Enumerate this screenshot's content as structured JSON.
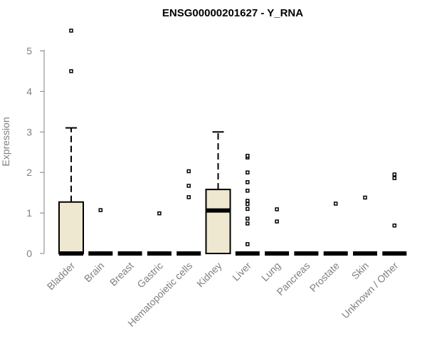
{
  "chart_data": {
    "type": "box",
    "title": "ENSG00000201627 - Y_RNA",
    "ylabel": "Expression",
    "xlabel": "",
    "ylim": [
      0,
      5.5
    ],
    "yticks": [
      0,
      1,
      2,
      3,
      4,
      5
    ],
    "grid": false,
    "colors": {
      "box_fill": "#EEE8D0",
      "stroke": "#000000",
      "axis": "#808080"
    },
    "categories": [
      "Bladder",
      "Brain",
      "Breast",
      "Gastric",
      "Hematopoietic cells",
      "Kidney",
      "Liver",
      "Lung",
      "Pancreas",
      "Prostate",
      "Skin",
      "Unknown / Other"
    ],
    "boxes": [
      {
        "category": "Bladder",
        "q1": 0,
        "median": 0,
        "q3": 1.27,
        "whisker_low": 0,
        "whisker_high": 3.1,
        "outliers": [
          4.5,
          5.5
        ]
      },
      {
        "category": "Brain",
        "q1": 0,
        "median": 0,
        "q3": 0,
        "whisker_low": 0,
        "whisker_high": 0,
        "outliers": [
          1.07
        ]
      },
      {
        "category": "Breast",
        "q1": 0,
        "median": 0,
        "q3": 0,
        "whisker_low": 0,
        "whisker_high": 0,
        "outliers": []
      },
      {
        "category": "Gastric",
        "q1": 0,
        "median": 0,
        "q3": 0,
        "whisker_low": 0,
        "whisker_high": 0,
        "outliers": [
          0.99
        ]
      },
      {
        "category": "Hematopoietic cells",
        "q1": 0,
        "median": 0,
        "q3": 0,
        "whisker_low": 0,
        "whisker_high": 0,
        "outliers": [
          1.39,
          1.67,
          2.03
        ]
      },
      {
        "category": "Kidney",
        "q1": 0,
        "median": 1.06,
        "q3": 1.58,
        "whisker_low": 0,
        "whisker_high": 3.0,
        "outliers": []
      },
      {
        "category": "Liver",
        "q1": 0,
        "median": 0,
        "q3": 0,
        "whisker_low": 0,
        "whisker_high": 0,
        "outliers": [
          0.23,
          0.74,
          0.86,
          1.1,
          1.22,
          1.3,
          1.55,
          1.76,
          2.0,
          2.37,
          2.41
        ]
      },
      {
        "category": "Lung",
        "q1": 0,
        "median": 0,
        "q3": 0,
        "whisker_low": 0,
        "whisker_high": 0,
        "outliers": [
          0.79,
          1.09
        ]
      },
      {
        "category": "Pancreas",
        "q1": 0,
        "median": 0,
        "q3": 0,
        "whisker_low": 0,
        "whisker_high": 0,
        "outliers": []
      },
      {
        "category": "Prostate",
        "q1": 0,
        "median": 0,
        "q3": 0,
        "whisker_low": 0,
        "whisker_high": 0,
        "outliers": [
          1.23
        ]
      },
      {
        "category": "Skin",
        "q1": 0,
        "median": 0,
        "q3": 0,
        "whisker_low": 0,
        "whisker_high": 0,
        "outliers": [
          1.38
        ]
      },
      {
        "category": "Unknown / Other",
        "q1": 0,
        "median": 0,
        "q3": 0,
        "whisker_low": 0,
        "whisker_high": 0,
        "outliers": [
          0.69,
          1.86,
          1.95
        ]
      }
    ]
  }
}
